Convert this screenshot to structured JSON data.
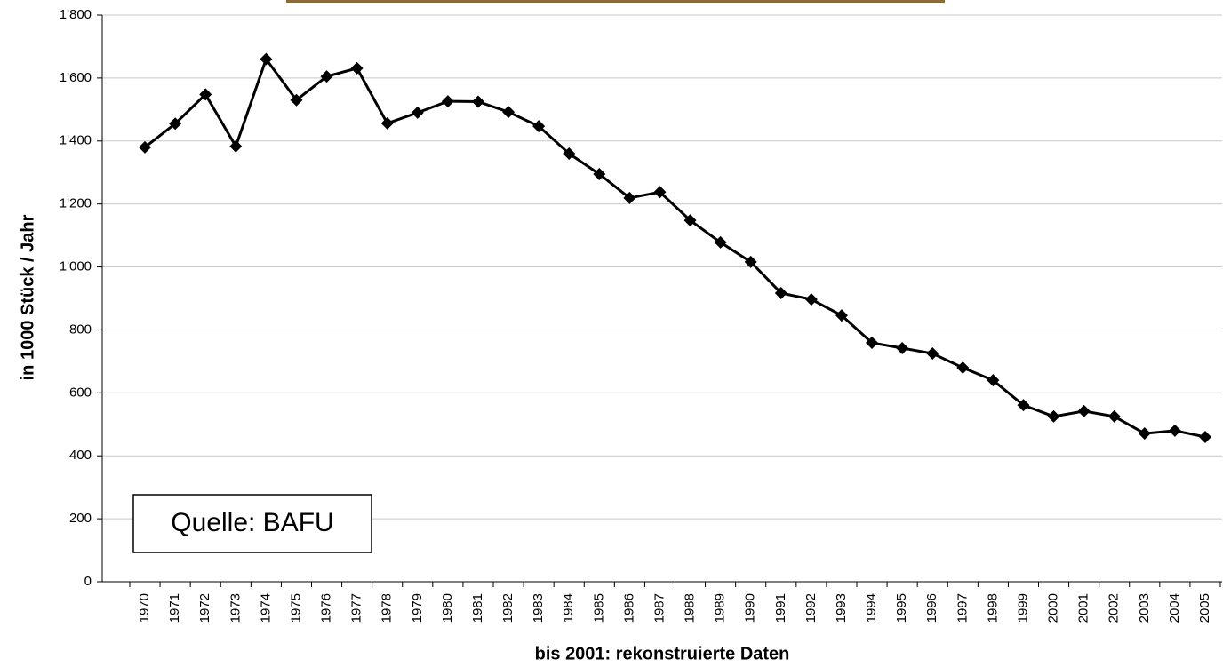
{
  "chart_data": {
    "type": "line",
    "y_label": "in 1000 Stück / Jahr",
    "x_label": "bis 2001: rekonstruierte Daten",
    "annotation": "Quelle: BAFU",
    "categories": [
      "1970",
      "1971",
      "1972",
      "1973",
      "1974",
      "1975",
      "1976",
      "1977",
      "1978",
      "1979",
      "1980",
      "1981",
      "1982",
      "1983",
      "1984",
      "1985",
      "1986",
      "1987",
      "1988",
      "1989",
      "1990",
      "1991",
      "1992",
      "1993",
      "1994",
      "1995",
      "1996",
      "1997",
      "1998",
      "1999",
      "2000",
      "2001",
      "2002",
      "2003",
      "2004",
      "2005"
    ],
    "values": [
      1380,
      1455,
      1548,
      1383,
      1660,
      1530,
      1605,
      1631,
      1456,
      1490,
      1526,
      1525,
      1492,
      1447,
      1360,
      1295,
      1219,
      1238,
      1148,
      1078,
      1016,
      917,
      897,
      846,
      759,
      742,
      725,
      680,
      640,
      561,
      525,
      542,
      525,
      471,
      480,
      460
    ],
    "color": "#000000",
    "ylim": [
      0,
      1800
    ],
    "yticks": [
      0,
      200,
      400,
      600,
      800,
      {
        "value": 1000,
        "label": "1'000"
      },
      {
        "value": 1200,
        "label": "1'200"
      },
      {
        "value": 1400,
        "label": "1'400"
      },
      {
        "value": 1600,
        "label": "1'600"
      },
      {
        "value": 1800,
        "label": "1'800"
      }
    ],
    "grid": true
  }
}
